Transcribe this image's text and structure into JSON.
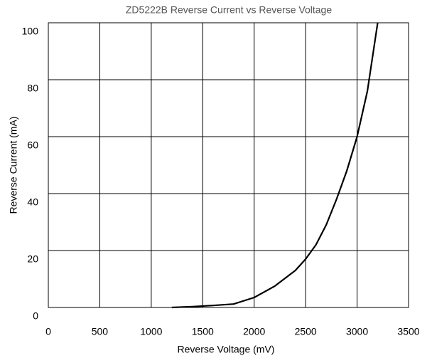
{
  "chart_data": {
    "type": "line",
    "title": "ZD5222B Reverse Current vs Reverse Voltage",
    "x_label": "Reverse Voltage (mV)",
    "y_label": "Reverse Current (mA)",
    "x": [
      1200,
      1400,
      1600,
      1800,
      2000,
      2200,
      2400,
      2500,
      2600,
      2700,
      2800,
      2900,
      3000,
      3100,
      3200
    ],
    "series": [
      {
        "name": "Reverse Current",
        "color": "#000000",
        "values": [
          0,
          0.3,
          0.7,
          1.2,
          3.5,
          7.5,
          13,
          17,
          22,
          29,
          38,
          48,
          60,
          76,
          100
        ]
      }
    ],
    "xlim": [
      0,
      3500
    ],
    "xticks": [
      0,
      500,
      1000,
      1500,
      2000,
      2500,
      3000,
      3500
    ],
    "ylim": [
      0,
      100
    ],
    "yticks": [
      0,
      20,
      40,
      60,
      80,
      100
    ],
    "grid": true
  }
}
